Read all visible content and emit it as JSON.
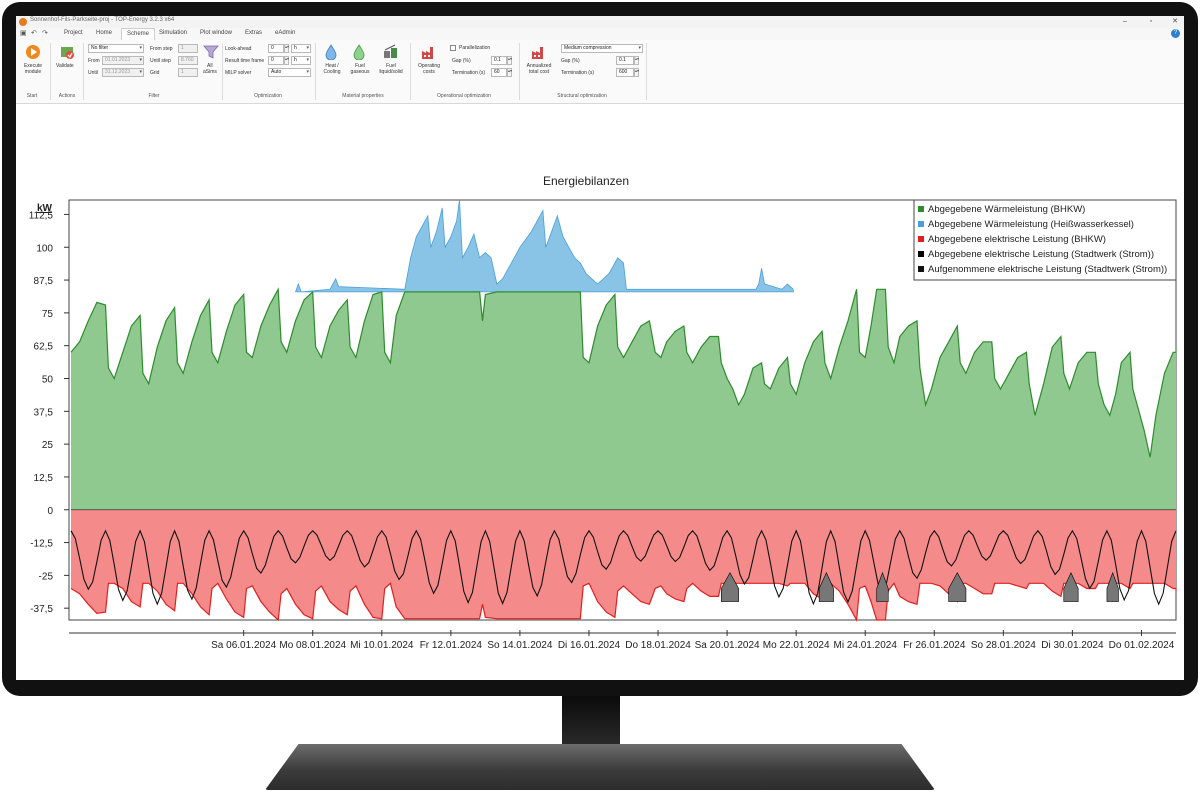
{
  "window": {
    "title": "Sonnenhof-Fils-Parkseite-proj - TOP-Energy 3.2.3 x64"
  },
  "menu": {
    "tabs": [
      "Project",
      "Home",
      "Scheme",
      "Simulation",
      "Plot window",
      "Extras",
      "eAdmin"
    ],
    "active_tab": "Scheme",
    "help_label": "?"
  },
  "ribbon": {
    "start": {
      "execute_label": "Execute module",
      "group": "Start"
    },
    "actions": {
      "validate_label": "Validate",
      "group": "Actions"
    },
    "filter": {
      "filter_select": "No filter",
      "from_label": "From",
      "from_value": "01.01.2023",
      "until_label": "Until",
      "until_value": "31.12.2023",
      "from_step_label": "From step",
      "from_step_value": "1",
      "until_step_label": "Until step",
      "until_step_value": "8.760",
      "grid_label": "Grid",
      "grid_value": "1",
      "all_label": "All",
      "asims_label": "aSims",
      "group": "Filter"
    },
    "optimization": {
      "lookahead_label": "Look-ahead",
      "lookahead_value": "0",
      "lookahead_unit": "h",
      "result_tf_label": "Result time frame",
      "result_tf_value": "0",
      "result_tf_unit": "h",
      "milp_label": "MILP solver",
      "milp_value": "Auto",
      "group": "Optimization"
    },
    "material": {
      "heat_label": "Heat / Cooling",
      "fuel_gas_label": "Fuel gaseous",
      "fuel_liquid_label": "Fuel liquid/solid",
      "group": "Material properties"
    },
    "operational": {
      "operating_costs_label": "Operating costs",
      "parallel_label": "Parallelization",
      "gap_label": "Gap (%)",
      "gap_value": "0.1",
      "termination_label": "Termination (s)",
      "termination_value": "60",
      "group": "Operational optimization"
    },
    "structural": {
      "annualized_label": "Annualized total cost",
      "compression_value": "Medium compression",
      "gap_label": "Gap (%)",
      "gap_value": "0.1",
      "termination_label": "Termination (s)",
      "termination_value": "600",
      "group": "Structural optimization"
    }
  },
  "chart_data": {
    "type": "area",
    "title": "Energiebilanzen",
    "ylabel": "kW",
    "ylim": [
      -42,
      118
    ],
    "yticks": [
      -37.5,
      -25,
      -12.5,
      0,
      12.5,
      25,
      37.5,
      50,
      62.5,
      75,
      87.5,
      100,
      112.5
    ],
    "ytick_labels": [
      "-37,5",
      "-25",
      "-12,5",
      "0",
      "12,5",
      "25",
      "37,5",
      "50",
      "62,5",
      "75",
      "87,5",
      "100",
      "112,5"
    ],
    "xlim": [
      0,
      768
    ],
    "x_unit": "hours since 01.01.2024 00:00 (hourly steps over the shown period)",
    "xticks": [
      120,
      168,
      216,
      264,
      312,
      360,
      408,
      456,
      504,
      552,
      600,
      648,
      696,
      744
    ],
    "xtick_labels": [
      "Sa 06.01.2024",
      "Mo 08.01.2024",
      "Mi 10.01.2024",
      "Fr 12.01.2024",
      "So 14.01.2024",
      "Di 16.01.2024",
      "Do 18.01.2024",
      "Sa 20.01.2024",
      "Mo 22.01.2024",
      "Mi 24.01.2024",
      "Fr 26.01.2024",
      "So 28.01.2024",
      "Di 30.01.2024",
      "Do 01.02.2024"
    ],
    "legend_position": "top-right",
    "series": [
      {
        "name": "Abgegebene Wärmeleistung (BHKW)",
        "color": "#2e8b2e",
        "fill": "#8fc98f",
        "points": [
          [
            0,
            60
          ],
          [
            6,
            64
          ],
          [
            12,
            72
          ],
          [
            18,
            79
          ],
          [
            24,
            78
          ],
          [
            26,
            54
          ],
          [
            30,
            50
          ],
          [
            36,
            60
          ],
          [
            42,
            70
          ],
          [
            48,
            74
          ],
          [
            50,
            52
          ],
          [
            54,
            48
          ],
          [
            60,
            62
          ],
          [
            66,
            72
          ],
          [
            72,
            77
          ],
          [
            74,
            56
          ],
          [
            78,
            52
          ],
          [
            84,
            64
          ],
          [
            90,
            74
          ],
          [
            96,
            80
          ],
          [
            98,
            60
          ],
          [
            102,
            56
          ],
          [
            108,
            68
          ],
          [
            114,
            78
          ],
          [
            120,
            82
          ],
          [
            122,
            60
          ],
          [
            126,
            58
          ],
          [
            132,
            70
          ],
          [
            138,
            78
          ],
          [
            144,
            84
          ],
          [
            146,
            64
          ],
          [
            150,
            60
          ],
          [
            156,
            72
          ],
          [
            162,
            80
          ],
          [
            168,
            83
          ],
          [
            170,
            62
          ],
          [
            174,
            58
          ],
          [
            180,
            70
          ],
          [
            186,
            76
          ],
          [
            192,
            80
          ],
          [
            194,
            62
          ],
          [
            198,
            58
          ],
          [
            204,
            72
          ],
          [
            210,
            82
          ],
          [
            216,
            83
          ],
          [
            218,
            60
          ],
          [
            222,
            56
          ],
          [
            226,
            74
          ],
          [
            232,
            83
          ],
          [
            284,
            83
          ],
          [
            286,
            72
          ],
          [
            288,
            82
          ],
          [
            296,
            83
          ],
          [
            300,
            83
          ],
          [
            354,
            83
          ],
          [
            356,
            58
          ],
          [
            360,
            56
          ],
          [
            366,
            70
          ],
          [
            372,
            78
          ],
          [
            378,
            82
          ],
          [
            380,
            62
          ],
          [
            384,
            58
          ],
          [
            390,
            64
          ],
          [
            396,
            70
          ],
          [
            402,
            72
          ],
          [
            406,
            60
          ],
          [
            410,
            58
          ],
          [
            414,
            64
          ],
          [
            420,
            68
          ],
          [
            426,
            70
          ],
          [
            428,
            60
          ],
          [
            432,
            56
          ],
          [
            438,
            62
          ],
          [
            444,
            66
          ],
          [
            450,
            66
          ],
          [
            452,
            56
          ],
          [
            456,
            50
          ],
          [
            460,
            46
          ],
          [
            464,
            40
          ],
          [
            468,
            44
          ],
          [
            474,
            54
          ],
          [
            480,
            56
          ],
          [
            482,
            48
          ],
          [
            486,
            46
          ],
          [
            492,
            54
          ],
          [
            498,
            58
          ],
          [
            500,
            48
          ],
          [
            504,
            44
          ],
          [
            510,
            56
          ],
          [
            516,
            64
          ],
          [
            522,
            68
          ],
          [
            524,
            56
          ],
          [
            528,
            50
          ],
          [
            534,
            62
          ],
          [
            540,
            72
          ],
          [
            546,
            84
          ],
          [
            548,
            60
          ],
          [
            552,
            58
          ],
          [
            556,
            70
          ],
          [
            560,
            84
          ],
          [
            566,
            84
          ],
          [
            568,
            62
          ],
          [
            572,
            56
          ],
          [
            576,
            66
          ],
          [
            582,
            70
          ],
          [
            588,
            72
          ],
          [
            590,
            54
          ],
          [
            594,
            40
          ],
          [
            598,
            46
          ],
          [
            604,
            58
          ],
          [
            610,
            64
          ],
          [
            616,
            70
          ],
          [
            618,
            56
          ],
          [
            622,
            52
          ],
          [
            628,
            60
          ],
          [
            634,
            64
          ],
          [
            640,
            64
          ],
          [
            642,
            50
          ],
          [
            646,
            46
          ],
          [
            652,
            52
          ],
          [
            658,
            58
          ],
          [
            664,
            60
          ],
          [
            666,
            48
          ],
          [
            670,
            36
          ],
          [
            676,
            48
          ],
          [
            682,
            62
          ],
          [
            688,
            66
          ],
          [
            690,
            52
          ],
          [
            694,
            46
          ],
          [
            700,
            56
          ],
          [
            706,
            60
          ],
          [
            712,
            60
          ],
          [
            714,
            48
          ],
          [
            718,
            40
          ],
          [
            722,
            36
          ],
          [
            726,
            44
          ],
          [
            730,
            56
          ],
          [
            736,
            60
          ],
          [
            738,
            46
          ],
          [
            742,
            38
          ],
          [
            746,
            30
          ],
          [
            750,
            20
          ],
          [
            754,
            36
          ],
          [
            760,
            52
          ],
          [
            766,
            60
          ],
          [
            768,
            60
          ],
          [
            768,
            62
          ],
          [
            760,
            64
          ],
          [
            756,
            70
          ],
          [
            752,
            76
          ],
          [
            746,
            72
          ],
          [
            742,
            80
          ],
          [
            738,
            84
          ],
          [
            734,
            76
          ],
          [
            730,
            82
          ],
          [
            726,
            82
          ],
          [
            722,
            76
          ],
          [
            718,
            70
          ],
          [
            714,
            62
          ],
          [
            712,
            58
          ],
          [
            710,
            56
          ],
          [
            706,
            54
          ],
          [
            702,
            60
          ],
          [
            698,
            66
          ],
          [
            694,
            70
          ],
          [
            690,
            58
          ],
          [
            686,
            56
          ],
          [
            682,
            62
          ],
          [
            678,
            66
          ],
          [
            674,
            70
          ],
          [
            670,
            62
          ],
          [
            666,
            56
          ],
          [
            662,
            52
          ],
          [
            660,
            50
          ]
        ],
        "values": null
      },
      {
        "name": "Abgegebene Wärmeleistung (Heißwasserkessel)",
        "color": "#4a9fd8",
        "fill": "#89c4e6",
        "points": [
          [
            156,
            83
          ],
          [
            158,
            86
          ],
          [
            160,
            83
          ],
          [
            180,
            84
          ],
          [
            184,
            88
          ],
          [
            186,
            85
          ],
          [
            232,
            84
          ],
          [
            236,
            96
          ],
          [
            240,
            104
          ],
          [
            244,
            108
          ],
          [
            248,
            112
          ],
          [
            250,
            100
          ],
          [
            254,
            106
          ],
          [
            258,
            115
          ],
          [
            260,
            100
          ],
          [
            264,
            104
          ],
          [
            268,
            110
          ],
          [
            270,
            118
          ],
          [
            272,
            96
          ],
          [
            276,
            100
          ],
          [
            280,
            105
          ],
          [
            284,
            96
          ],
          [
            288,
            98
          ],
          [
            292,
            96
          ],
          [
            296,
            86
          ],
          [
            300,
            88
          ],
          [
            304,
            92
          ],
          [
            308,
            96
          ],
          [
            312,
            100
          ],
          [
            316,
            103
          ],
          [
            320,
            106
          ],
          [
            324,
            110
          ],
          [
            328,
            114
          ],
          [
            330,
            100
          ],
          [
            334,
            106
          ],
          [
            338,
            112
          ],
          [
            342,
            104
          ],
          [
            346,
            100
          ],
          [
            350,
            96
          ],
          [
            354,
            94
          ],
          [
            358,
            90
          ],
          [
            362,
            88
          ],
          [
            366,
            86
          ],
          [
            370,
            88
          ],
          [
            374,
            90
          ],
          [
            378,
            94
          ],
          [
            380,
            96
          ],
          [
            384,
            94
          ],
          [
            386,
            84
          ],
          [
            476,
            84
          ],
          [
            478,
            86
          ],
          [
            480,
            92
          ],
          [
            482,
            86
          ],
          [
            494,
            84
          ],
          [
            498,
            86
          ],
          [
            502,
            84
          ]
        ],
        "values": null
      },
      {
        "name": "Abgegebene elektrische Leistung (BHKW)",
        "color": "#e02020",
        "fill": "#f58a8a",
        "points": "mirrors heat profile; min about -42 kW, max 0 kW",
        "values": null
      },
      {
        "name": "Abgegebene elektrische Leistung (Stadtwerk (Strom))",
        "color": "#000000",
        "fill": "#777777",
        "points": "small grey areas near -30 to -37 kW around Jan 20 - Jan 31",
        "values": null
      },
      {
        "name": "Aufgenommene elektrische Leistung (Stadtwerk (Strom))",
        "color": "#111111",
        "fill": "none",
        "points": "line series oscillating between about -38 kW and 0 kW",
        "values": null
      }
    ]
  }
}
